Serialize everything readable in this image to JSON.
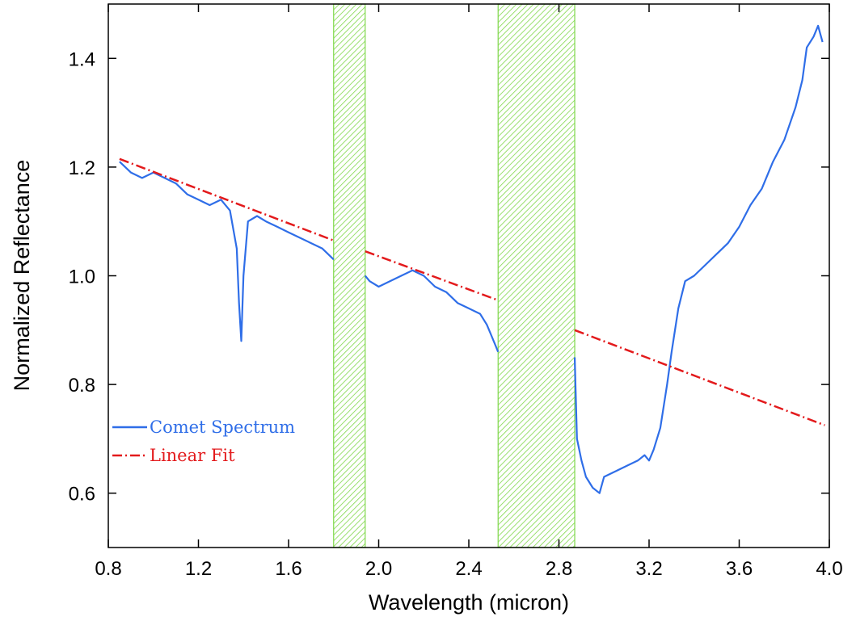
{
  "chart_data": {
    "type": "line",
    "title": "",
    "xlabel": "Wavelength (micron)",
    "ylabel": "Normalized Reflectance",
    "xlim": [
      0.8,
      4.0
    ],
    "ylim": [
      0.5,
      1.5
    ],
    "x_ticks": [
      "0.8",
      "1.2",
      "1.6",
      "2.0",
      "2.4",
      "2.8",
      "3.2",
      "3.6",
      "4.0"
    ],
    "y_ticks": [
      "0.6",
      "0.8",
      "1.0",
      "1.2",
      "1.4"
    ],
    "grid": false,
    "legend_position": "lower-left",
    "shaded_bands": [
      {
        "x_start": 1.8,
        "x_end": 1.94,
        "color": "#7fd84a"
      },
      {
        "x_start": 2.53,
        "x_end": 2.87,
        "color": "#7fd84a"
      }
    ],
    "series": [
      {
        "name": "Comet Spectrum",
        "style": "solid",
        "color": "#2f6ee8",
        "segments": [
          {
            "x": [
              0.85,
              0.9,
              0.95,
              1.0,
              1.05,
              1.1,
              1.15,
              1.2,
              1.25,
              1.3,
              1.34,
              1.37,
              1.38,
              1.39,
              1.4,
              1.42,
              1.46,
              1.5,
              1.55,
              1.6,
              1.65,
              1.7,
              1.75,
              1.8
            ],
            "y": [
              1.21,
              1.19,
              1.18,
              1.19,
              1.18,
              1.17,
              1.15,
              1.14,
              1.13,
              1.14,
              1.12,
              1.05,
              0.95,
              0.88,
              1.0,
              1.1,
              1.11,
              1.1,
              1.09,
              1.08,
              1.07,
              1.06,
              1.05,
              1.03
            ]
          },
          {
            "x": [
              1.94,
              1.96,
              2.0,
              2.05,
              2.1,
              2.15,
              2.2,
              2.25,
              2.3,
              2.35,
              2.4,
              2.45,
              2.48,
              2.5,
              2.52,
              2.53
            ],
            "y": [
              1.0,
              0.99,
              0.98,
              0.99,
              1.0,
              1.01,
              1.0,
              0.98,
              0.97,
              0.95,
              0.94,
              0.93,
              0.91,
              0.89,
              0.87,
              0.86
            ]
          },
          {
            "x": [
              2.87,
              2.88,
              2.9,
              2.92,
              2.95,
              2.98,
              3.0,
              3.05,
              3.1,
              3.15,
              3.18,
              3.2,
              3.22,
              3.25,
              3.28,
              3.3,
              3.33,
              3.36,
              3.4,
              3.45,
              3.5,
              3.55,
              3.6,
              3.65,
              3.7,
              3.75,
              3.8,
              3.85,
              3.88,
              3.9,
              3.93,
              3.95,
              3.97
            ],
            "y": [
              0.85,
              0.7,
              0.66,
              0.63,
              0.61,
              0.6,
              0.63,
              0.64,
              0.65,
              0.66,
              0.67,
              0.66,
              0.68,
              0.72,
              0.8,
              0.86,
              0.94,
              0.99,
              1.0,
              1.02,
              1.04,
              1.06,
              1.09,
              1.13,
              1.16,
              1.21,
              1.25,
              1.31,
              1.36,
              1.42,
              1.44,
              1.46,
              1.43
            ]
          }
        ]
      },
      {
        "name": "Linear Fit",
        "style": "dash-dot",
        "color": "#e31a1c",
        "segments": [
          {
            "x": [
              0.85,
              1.8
            ],
            "y": [
              1.215,
              1.065
            ]
          },
          {
            "x": [
              1.94,
              2.53
            ],
            "y": [
              1.045,
              0.955
            ]
          },
          {
            "x": [
              2.87,
              3.98
            ],
            "y": [
              0.9,
              0.725
            ]
          }
        ]
      }
    ]
  }
}
